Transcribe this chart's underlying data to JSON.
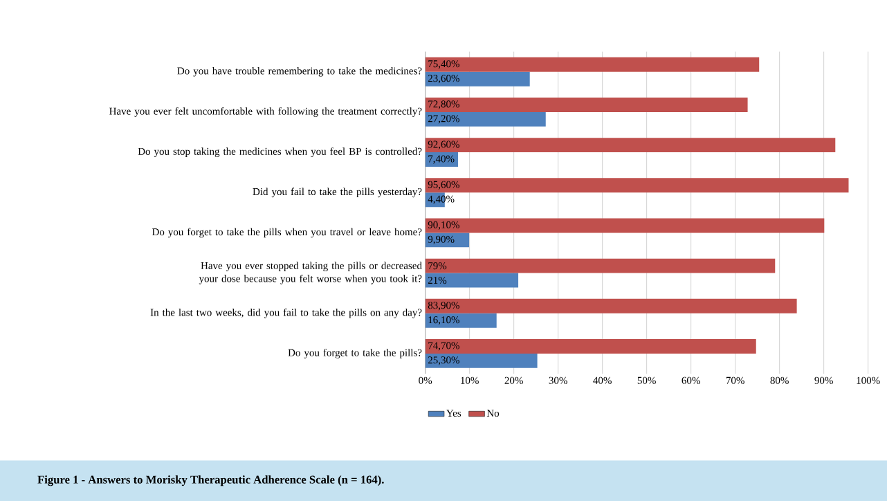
{
  "chart_data": {
    "type": "bar",
    "orientation": "horizontal",
    "title": "Figure 1 - Answers to Morisky Therapeutic Adherence Scale (n = 164).",
    "categories": [
      "Do you have trouble remembering to take the medicines?",
      "Have you ever felt uncomfortable with following the treatment correctly?",
      "Do you stop taking the medicines when you feel BP is controlled?",
      "Did you fail to take the pills yesterday?",
      "Do you forget to take the pills when you travel or leave home?",
      "Have you ever stopped taking the pills or decreased your dose because you felt worse when you took it?",
      "In the last two weeks, did you fail to take the pills on any day?",
      "Do you forget to take the pills?"
    ],
    "series": [
      {
        "name": "Yes",
        "color": "#4f81bd",
        "values": [
          23.6,
          27.2,
          7.4,
          4.4,
          9.9,
          21,
          16.1,
          25.3
        ],
        "value_labels": [
          "23,60%",
          "27,20%",
          "7,40%",
          "4,40%",
          "9,90%",
          "21%",
          "16,10%",
          "25,30%"
        ]
      },
      {
        "name": "No",
        "color": "#c0504d",
        "values": [
          75.4,
          72.8,
          92.6,
          95.6,
          90.1,
          79,
          83.9,
          74.7
        ],
        "value_labels": [
          "75,40%",
          "72,80%",
          "92,60%",
          "95,60%",
          "90,10%",
          "79%",
          "83,90%",
          "74,70%"
        ]
      }
    ],
    "xlim": [
      0,
      100
    ],
    "xticks": [
      {
        "value": 0,
        "label": "0%"
      },
      {
        "value": 10,
        "label": "10%"
      },
      {
        "value": 20,
        "label": "20%"
      },
      {
        "value": 30,
        "label": "30%"
      },
      {
        "value": 40,
        "label": "40%"
      },
      {
        "value": 50,
        "label": "50%"
      },
      {
        "value": 60,
        "label": "60%"
      },
      {
        "value": 70,
        "label": "70%"
      },
      {
        "value": 80,
        "label": "80%"
      },
      {
        "value": 90,
        "label": "90%"
      },
      {
        "value": 100,
        "label": "100%"
      }
    ],
    "grid": "x",
    "legend": "bottom"
  }
}
